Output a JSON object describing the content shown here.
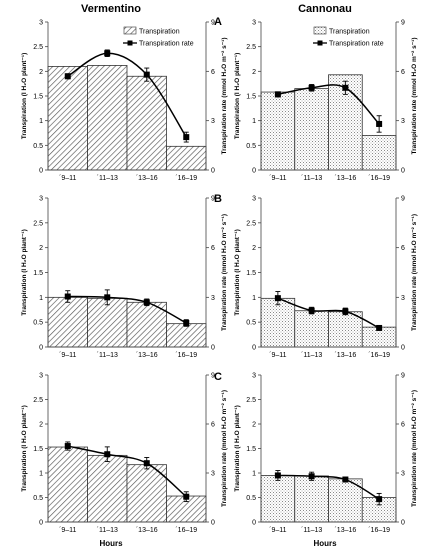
{
  "figure": {
    "column_titles": [
      "Vermentino",
      "Cannonau"
    ],
    "row_letters": [
      "A",
      "B",
      "C"
    ],
    "xlabel": "Hours",
    "ylabel_left": "Transpiration (l H₂O plant⁻¹)",
    "ylabel_right": "Transpiration rate (mmol H₂O m⁻² s⁻¹)"
  },
  "legend": {
    "bar_label": "Transpiration",
    "line_label": "Transpiration rate"
  },
  "chart_data": [
    {
      "type": "bar",
      "panel": "A",
      "cultivar": "Vermentino",
      "categories": [
        "´9–11",
        "´11–13",
        "´13–16",
        "´16–19"
      ],
      "ylim": [
        0,
        3
      ],
      "yticks": [
        "0",
        "0.5",
        "1",
        "1.5",
        "2",
        "2.5",
        "3"
      ],
      "series": [
        {
          "name": "Transpiration",
          "values": [
            2.1,
            2.12,
            1.9,
            0.48
          ]
        },
        {
          "name": "Transpiration rate",
          "values": [
            5.7,
            7.1,
            5.8,
            2.0
          ],
          "errors": [
            0.15,
            0.2,
            0.4,
            0.3
          ]
        }
      ],
      "y2lim": [
        0,
        9
      ],
      "y2ticks": [
        "0",
        "3",
        "6",
        "9"
      ],
      "legend": "top-right"
    },
    {
      "type": "bar",
      "panel": "A",
      "cultivar": "Cannonau",
      "categories": [
        "´9–11",
        "´11–13",
        "´13–16",
        "´16–19"
      ],
      "ylim": [
        0,
        3
      ],
      "yticks": [
        "0",
        "0.5",
        "1",
        "1.5",
        "2",
        "2.5",
        "3"
      ],
      "series": [
        {
          "name": "Transpiration",
          "values": [
            1.58,
            1.65,
            1.93,
            0.7
          ]
        },
        {
          "name": "Transpiration rate",
          "values": [
            4.6,
            5.0,
            5.0,
            2.8
          ],
          "errors": [
            0.15,
            0.2,
            0.4,
            0.5
          ]
        }
      ],
      "y2lim": [
        0,
        9
      ],
      "y2ticks": [
        "0",
        "3",
        "6",
        "9"
      ],
      "legend": "top-right"
    },
    {
      "type": "bar",
      "panel": "B",
      "cultivar": "Vermentino",
      "categories": [
        "´9–11",
        "´11–13",
        "´13–16",
        "´16–19"
      ],
      "ylim": [
        0,
        3
      ],
      "yticks": [
        "0",
        "0.5",
        "1",
        "1.5",
        "2",
        "2.5",
        "3"
      ],
      "series": [
        {
          "name": "Transpiration",
          "values": [
            1.0,
            0.98,
            0.9,
            0.47
          ]
        },
        {
          "name": "Transpiration rate",
          "values": [
            3.05,
            3.0,
            2.7,
            1.45
          ],
          "errors": [
            0.35,
            0.45,
            0.2,
            0.2
          ]
        }
      ],
      "y2lim": [
        0,
        9
      ],
      "y2ticks": [
        "0",
        "3",
        "6",
        "9"
      ]
    },
    {
      "type": "bar",
      "panel": "B",
      "cultivar": "Cannonau",
      "categories": [
        "´9–11",
        "´11–13",
        "´13–16",
        "´16–19"
      ],
      "ylim": [
        0,
        3
      ],
      "yticks": [
        "0",
        "0.5",
        "1",
        "1.5",
        "2",
        "2.5",
        "3"
      ],
      "series": [
        {
          "name": "Transpiration",
          "values": [
            0.98,
            0.73,
            0.71,
            0.4
          ]
        },
        {
          "name": "Transpiration rate",
          "values": [
            2.95,
            2.2,
            2.15,
            1.15
          ],
          "errors": [
            0.4,
            0.2,
            0.2,
            0.1
          ]
        }
      ],
      "y2lim": [
        0,
        9
      ],
      "y2ticks": [
        "0",
        "3",
        "6",
        "9"
      ]
    },
    {
      "type": "bar",
      "panel": "C",
      "cultivar": "Vermentino",
      "categories": [
        "´9–11",
        "´11–13",
        "´13–16",
        "´16–19"
      ],
      "ylim": [
        0,
        3
      ],
      "yticks": [
        "0",
        "0.5",
        "1",
        "1.5",
        "2",
        "2.5",
        "3"
      ],
      "series": [
        {
          "name": "Transpiration",
          "values": [
            1.53,
            1.36,
            1.17,
            0.53
          ]
        },
        {
          "name": "Transpiration rate",
          "values": [
            4.65,
            4.15,
            3.6,
            1.55
          ],
          "errors": [
            0.25,
            0.45,
            0.35,
            0.3
          ]
        }
      ],
      "y2lim": [
        0,
        9
      ],
      "y2ticks": [
        "0",
        "3",
        "6",
        "9"
      ]
    },
    {
      "type": "bar",
      "panel": "C",
      "cultivar": "Cannonau",
      "categories": [
        "´9–11",
        "´11–13",
        "´13–16",
        "´16–19"
      ],
      "ylim": [
        0,
        3
      ],
      "yticks": [
        "0",
        "0.5",
        "1",
        "1.5",
        "2",
        "2.5",
        "3"
      ],
      "series": [
        {
          "name": "Transpiration",
          "values": [
            0.95,
            0.94,
            0.88,
            0.5
          ]
        },
        {
          "name": "Transpiration rate",
          "values": [
            2.85,
            2.8,
            2.6,
            1.4
          ],
          "errors": [
            0.3,
            0.25,
            0.15,
            0.35
          ]
        }
      ],
      "y2lim": [
        0,
        9
      ],
      "y2ticks": [
        "0",
        "3",
        "6",
        "9"
      ]
    }
  ]
}
